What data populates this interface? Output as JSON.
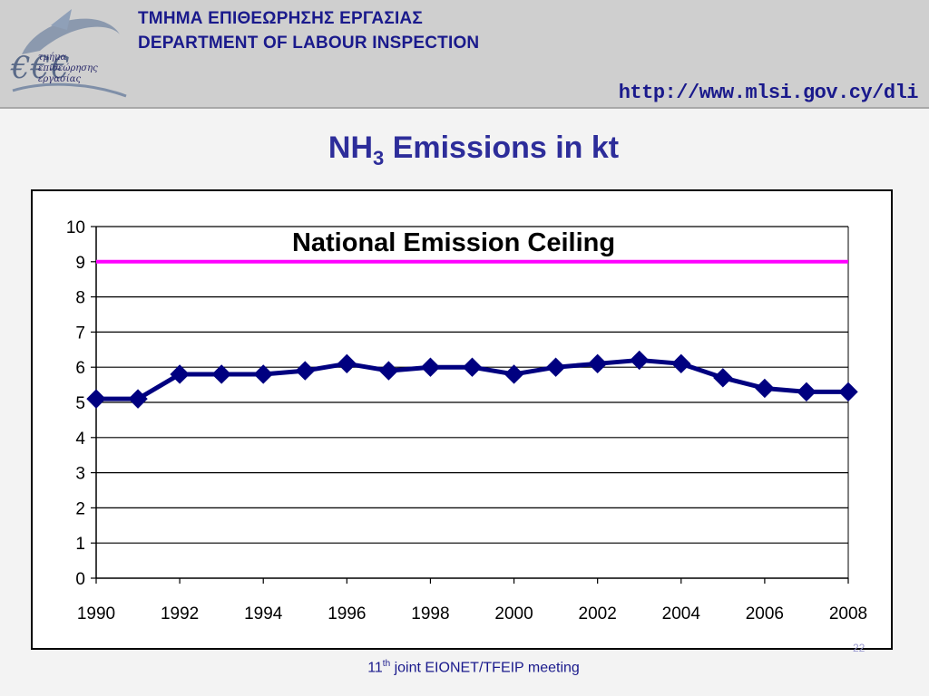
{
  "header": {
    "dept_greek": "ΤΜΗΜΑ ΕΠΙΘΕΩΡΗΣΗΣ ΕΡΓΑΣΙΑΣ",
    "dept_english": "DEPARTMENT OF LABOUR INSPECTION",
    "url": "http://www.mlsi.gov.cy/dli",
    "logo": {
      "icon": "labour-inspection-logo",
      "line1": "τμήμα",
      "line2": "επιθεώρησης",
      "line3": "εργασίας"
    }
  },
  "slide_title": {
    "prefix": "NH",
    "subscript": "3",
    "suffix": " Emissions in kt"
  },
  "chart_data": {
    "type": "line",
    "title": "",
    "xlabel": "",
    "ylabel": "",
    "x": [
      1990,
      1991,
      1992,
      1993,
      1994,
      1995,
      1996,
      1997,
      1998,
      1999,
      2000,
      2001,
      2002,
      2003,
      2004,
      2005,
      2006,
      2007,
      2008
    ],
    "x_ticks": [
      1990,
      1992,
      1994,
      1996,
      1998,
      2000,
      2002,
      2004,
      2006,
      2008
    ],
    "y_ticks": [
      0,
      1,
      2,
      3,
      4,
      5,
      6,
      7,
      8,
      9,
      10
    ],
    "ylim": [
      0,
      10
    ],
    "xlim": [
      1990,
      2008
    ],
    "grid": true,
    "series": [
      {
        "name": "",
        "color": "#000080",
        "marker": "diamond",
        "values": [
          5.1,
          5.1,
          5.8,
          5.8,
          5.8,
          5.9,
          6.1,
          5.9,
          6.0,
          6.0,
          5.8,
          6.0,
          6.1,
          6.2,
          6.1,
          5.7,
          5.4,
          5.3,
          5.3
        ]
      }
    ],
    "reference_line": {
      "label": "National Emission Ceiling",
      "value": 9,
      "color": "#ff00ff"
    }
  },
  "footer": {
    "number": "11",
    "ordinal": "th",
    "text": " joint EIONET/TFEIP meeting"
  },
  "page_number": "22"
}
